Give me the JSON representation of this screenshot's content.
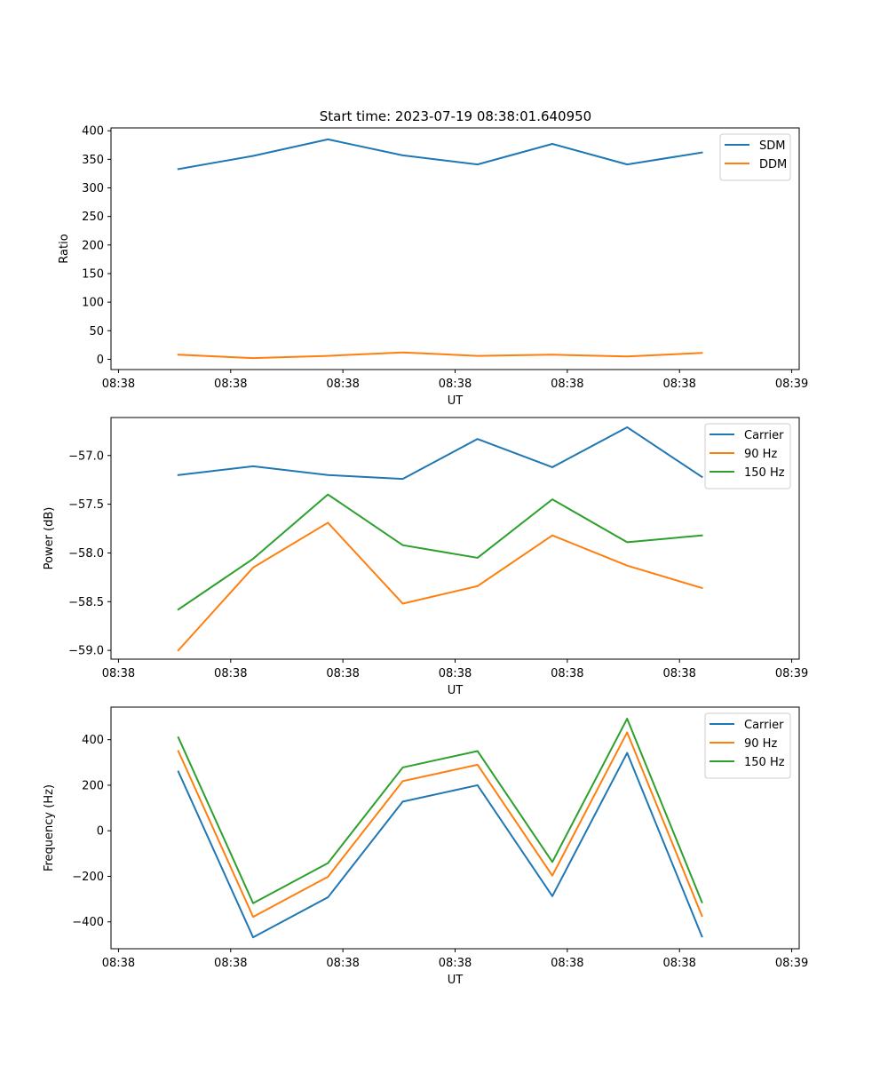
{
  "figure_title": "Start time: 2023-07-19 08:38:01.640950",
  "chart_data": [
    {
      "type": "line",
      "title": "Start time: 2023-07-19 08:38:01.640950",
      "xlabel": "UT",
      "ylabel": "Ratio",
      "x": [
        1,
        2,
        3,
        4,
        5,
        6,
        7,
        8
      ],
      "xlim": [
        0.1,
        9.3
      ],
      "ylim": [
        -18,
        405
      ],
      "yticks": [
        0,
        50,
        100,
        150,
        200,
        250,
        300,
        350,
        400
      ],
      "ytick_labels": [
        "0",
        "50",
        "100",
        "150",
        "200",
        "250",
        "300",
        "350",
        "400"
      ],
      "xticks": [
        0.2,
        1.7,
        3.2,
        4.7,
        6.2,
        7.7,
        9.2
      ],
      "xtick_labels": [
        "08:38",
        "08:38",
        "08:38",
        "08:38",
        "08:38",
        "08:38",
        "08:39"
      ],
      "legend_position": "top-right",
      "series": [
        {
          "name": "SDM",
          "color": "#1f77b4",
          "values": [
            333,
            356,
            385,
            357,
            341,
            377,
            341,
            362
          ]
        },
        {
          "name": "DDM",
          "color": "#ff7f0e",
          "values": [
            8,
            2,
            6,
            12,
            6,
            8,
            5,
            11
          ]
        }
      ]
    },
    {
      "type": "line",
      "title": "",
      "xlabel": "UT",
      "ylabel": "Power (dB)",
      "x": [
        1,
        2,
        3,
        4,
        5,
        6,
        7,
        8
      ],
      "xlim": [
        0.1,
        9.3
      ],
      "ylim": [
        -59.09,
        -56.61
      ],
      "yticks": [
        -59.0,
        -58.5,
        -58.0,
        -57.5,
        -57.0
      ],
      "ytick_labels": [
        "−59.0",
        "−58.5",
        "−58.0",
        "−57.5",
        "−57.0"
      ],
      "xticks": [
        0.2,
        1.7,
        3.2,
        4.7,
        6.2,
        7.7,
        9.2
      ],
      "xtick_labels": [
        "08:38",
        "08:38",
        "08:38",
        "08:38",
        "08:38",
        "08:38",
        "08:39"
      ],
      "legend_position": "top-right",
      "series": [
        {
          "name": "Carrier",
          "color": "#1f77b4",
          "values": [
            -57.2,
            -57.11,
            -57.2,
            -57.24,
            -56.83,
            -57.12,
            -56.71,
            -57.22
          ]
        },
        {
          "name": "90 Hz",
          "color": "#ff7f0e",
          "values": [
            -59.0,
            -58.15,
            -57.69,
            -58.52,
            -58.34,
            -57.82,
            -58.13,
            -58.36
          ]
        },
        {
          "name": "150 Hz",
          "color": "#2ca02c",
          "values": [
            -58.58,
            -58.06,
            -57.4,
            -57.92,
            -58.05,
            -57.45,
            -57.89,
            -57.82
          ]
        }
      ]
    },
    {
      "type": "line",
      "title": "",
      "xlabel": "UT",
      "ylabel": "Frequency (Hz)",
      "x": [
        1,
        2,
        3,
        4,
        5,
        6,
        7,
        8
      ],
      "xlim": [
        0.1,
        9.3
      ],
      "ylim": [
        -518,
        543
      ],
      "yticks": [
        -400,
        -200,
        0,
        200,
        400
      ],
      "ytick_labels": [
        "−400",
        "−200",
        "0",
        "200",
        "400"
      ],
      "xticks": [
        0.2,
        1.7,
        3.2,
        4.7,
        6.2,
        7.7,
        9.2
      ],
      "xtick_labels": [
        "08:38",
        "08:38",
        "08:38",
        "08:38",
        "08:38",
        "08:38",
        "08:39"
      ],
      "legend_position": "top-right",
      "series": [
        {
          "name": "Carrier",
          "color": "#1f77b4",
          "values": [
            260,
            -468,
            -292,
            128,
            200,
            -287,
            342,
            -464
          ]
        },
        {
          "name": "90 Hz",
          "color": "#ff7f0e",
          "values": [
            350,
            -378,
            -202,
            218,
            290,
            -197,
            432,
            -374
          ]
        },
        {
          "name": "150 Hz",
          "color": "#2ca02c",
          "values": [
            410,
            -318,
            -142,
            278,
            350,
            -137,
            492,
            -314
          ]
        }
      ]
    }
  ]
}
